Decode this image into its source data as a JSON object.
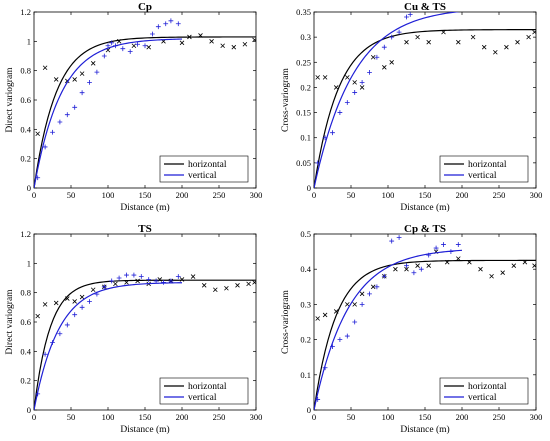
{
  "colors": {
    "horizontal": "#000000",
    "vertical": "#1f1fd6",
    "axis": "#000000",
    "background": "#ffffff"
  },
  "chart_data": [
    {
      "type": "scatter",
      "title": "Cp",
      "xlabel": "Distance (m)",
      "ylabel": "Direct variogram",
      "xlim": [
        0,
        300
      ],
      "ylim": [
        0,
        1.2
      ],
      "xticks": [
        "0",
        "50",
        "100",
        "150",
        "200",
        "250",
        "300"
      ],
      "yticks": [
        "0",
        "0.2",
        "0.4",
        "0.6",
        "0.8",
        "1",
        "1.2"
      ],
      "legend_position": "bottom-right",
      "series": [
        {
          "name": "horizontal",
          "color": "#000000",
          "marker": "x",
          "points": [
            [
              5,
              0.37
            ],
            [
              15,
              0.82
            ],
            [
              30,
              0.74
            ],
            [
              45,
              0.73
            ],
            [
              55,
              0.74
            ],
            [
              65,
              0.78
            ],
            [
              80,
              0.85
            ],
            [
              100,
              0.94
            ],
            [
              115,
              1.0
            ],
            [
              135,
              0.97
            ],
            [
              155,
              0.96
            ],
            [
              175,
              1.0
            ],
            [
              200,
              0.99
            ],
            [
              210,
              1.03
            ],
            [
              225,
              1.04
            ],
            [
              240,
              1.0
            ],
            [
              255,
              0.97
            ],
            [
              270,
              0.96
            ],
            [
              285,
              0.98
            ],
            [
              298,
              1.01
            ]
          ],
          "model": {
            "nugget": 0.0,
            "sill": 1.03,
            "range": 90,
            "x_max": 300
          }
        },
        {
          "name": "vertical",
          "color": "#1f1fd6",
          "marker": "+",
          "points": [
            [
              5,
              0.07
            ],
            [
              15,
              0.28
            ],
            [
              25,
              0.38
            ],
            [
              35,
              0.45
            ],
            [
              45,
              0.5
            ],
            [
              55,
              0.55
            ],
            [
              65,
              0.65
            ],
            [
              75,
              0.72
            ],
            [
              85,
              0.79
            ],
            [
              95,
              0.9
            ],
            [
              100,
              0.97
            ],
            [
              105,
              0.99
            ],
            [
              110,
              0.97
            ],
            [
              120,
              0.95
            ],
            [
              130,
              0.93
            ],
            [
              140,
              0.98
            ],
            [
              150,
              0.97
            ],
            [
              160,
              1.05
            ],
            [
              168,
              1.1
            ],
            [
              178,
              1.12
            ],
            [
              185,
              1.14
            ],
            [
              195,
              1.12
            ]
          ],
          "model": {
            "nugget": 0.0,
            "sill": 1.02,
            "range": 110,
            "x_max": 200
          }
        }
      ]
    },
    {
      "type": "scatter",
      "title": "Cu & TS",
      "xlabel": "Distance (m)",
      "ylabel": "Cross-variogram",
      "xlim": [
        0,
        300
      ],
      "ylim": [
        0,
        0.35
      ],
      "xticks": [
        "0",
        "50",
        "100",
        "150",
        "200",
        "250",
        "300"
      ],
      "yticks": [
        "0",
        "0.05",
        "0.1",
        "0.15",
        "0.2",
        "0.25",
        "0.3",
        "0.35"
      ],
      "legend_position": "bottom-right",
      "series": [
        {
          "name": "horizontal",
          "color": "#000000",
          "marker": "x",
          "points": [
            [
              5,
              0.22
            ],
            [
              15,
              0.22
            ],
            [
              30,
              0.2
            ],
            [
              45,
              0.22
            ],
            [
              55,
              0.21
            ],
            [
              65,
              0.2
            ],
            [
              80,
              0.26
            ],
            [
              95,
              0.24
            ],
            [
              105,
              0.25
            ],
            [
              125,
              0.29
            ],
            [
              140,
              0.3
            ],
            [
              155,
              0.29
            ],
            [
              175,
              0.31
            ],
            [
              195,
              0.29
            ],
            [
              215,
              0.3
            ],
            [
              230,
              0.28
            ],
            [
              245,
              0.27
            ],
            [
              260,
              0.28
            ],
            [
              275,
              0.29
            ],
            [
              290,
              0.3
            ],
            [
              298,
              0.31
            ]
          ],
          "model": {
            "nugget": 0.0,
            "sill": 0.315,
            "range": 100,
            "x_max": 300
          }
        },
        {
          "name": "vertical",
          "color": "#1f1fd6",
          "marker": "+",
          "points": [
            [
              5,
              0.05
            ],
            [
              15,
              0.1
            ],
            [
              25,
              0.11
            ],
            [
              35,
              0.15
            ],
            [
              45,
              0.17
            ],
            [
              55,
              0.19
            ],
            [
              65,
              0.21
            ],
            [
              75,
              0.23
            ],
            [
              85,
              0.26
            ],
            [
              95,
              0.28
            ],
            [
              105,
              0.3
            ],
            [
              115,
              0.31
            ],
            [
              125,
              0.34
            ],
            [
              130,
              0.345
            ]
          ],
          "model": {
            "nugget": 0.0,
            "sill": 0.36,
            "range": 160,
            "x_max": 200
          }
        }
      ]
    },
    {
      "type": "scatter",
      "title": "TS",
      "xlabel": "Distance (m)",
      "ylabel": "Direct variogram",
      "xlim": [
        0,
        300
      ],
      "ylim": [
        0,
        1.2
      ],
      "xticks": [
        "0",
        "50",
        "100",
        "150",
        "200",
        "250",
        "300"
      ],
      "yticks": [
        "0",
        "0.2",
        "0.4",
        "0.6",
        "0.8",
        "1",
        "1.2"
      ],
      "legend_position": "bottom-right",
      "series": [
        {
          "name": "horizontal",
          "color": "#000000",
          "marker": "x",
          "points": [
            [
              5,
              0.64
            ],
            [
              15,
              0.72
            ],
            [
              30,
              0.73
            ],
            [
              45,
              0.76
            ],
            [
              55,
              0.74
            ],
            [
              65,
              0.77
            ],
            [
              80,
              0.82
            ],
            [
              95,
              0.84
            ],
            [
              110,
              0.86
            ],
            [
              125,
              0.87
            ],
            [
              140,
              0.88
            ],
            [
              155,
              0.86
            ],
            [
              170,
              0.89
            ],
            [
              185,
              0.88
            ],
            [
              200,
              0.89
            ],
            [
              215,
              0.91
            ],
            [
              230,
              0.85
            ],
            [
              245,
              0.82
            ],
            [
              260,
              0.83
            ],
            [
              275,
              0.85
            ],
            [
              290,
              0.86
            ],
            [
              298,
              0.87
            ]
          ],
          "model": {
            "nugget": 0.0,
            "sill": 0.885,
            "range": 65,
            "x_max": 300
          }
        },
        {
          "name": "vertical",
          "color": "#1f1fd6",
          "marker": "+",
          "points": [
            [
              5,
              0.11
            ],
            [
              15,
              0.38
            ],
            [
              25,
              0.46
            ],
            [
              35,
              0.52
            ],
            [
              45,
              0.58
            ],
            [
              55,
              0.65
            ],
            [
              65,
              0.7
            ],
            [
              75,
              0.74
            ],
            [
              85,
              0.79
            ],
            [
              95,
              0.84
            ],
            [
              105,
              0.88
            ],
            [
              115,
              0.9
            ],
            [
              125,
              0.92
            ],
            [
              135,
              0.92
            ],
            [
              145,
              0.91
            ],
            [
              155,
              0.89
            ],
            [
              165,
              0.88
            ],
            [
              175,
              0.87
            ],
            [
              185,
              0.88
            ],
            [
              195,
              0.91
            ]
          ],
          "model": {
            "nugget": 0.0,
            "sill": 0.87,
            "range": 100,
            "x_max": 200
          }
        }
      ]
    },
    {
      "type": "scatter",
      "title": "Cp & TS",
      "xlabel": "Distance (m)",
      "ylabel": "Cross-variogram",
      "xlim": [
        0,
        300
      ],
      "ylim": [
        0,
        0.5
      ],
      "xticks": [
        "0",
        "50",
        "100",
        "150",
        "200",
        "250",
        "300"
      ],
      "yticks": [
        "0",
        "0.1",
        "0.2",
        "0.3",
        "0.4",
        "0.5"
      ],
      "legend_position": "bottom-right",
      "series": [
        {
          "name": "horizontal",
          "color": "#000000",
          "marker": "x",
          "points": [
            [
              5,
              0.26
            ],
            [
              15,
              0.27
            ],
            [
              30,
              0.28
            ],
            [
              45,
              0.3
            ],
            [
              55,
              0.3
            ],
            [
              65,
              0.33
            ],
            [
              80,
              0.35
            ],
            [
              95,
              0.38
            ],
            [
              110,
              0.4
            ],
            [
              125,
              0.4
            ],
            [
              140,
              0.41
            ],
            [
              155,
              0.41
            ],
            [
              165,
              0.45
            ],
            [
              180,
              0.42
            ],
            [
              195,
              0.43
            ],
            [
              210,
              0.42
            ],
            [
              225,
              0.4
            ],
            [
              240,
              0.38
            ],
            [
              255,
              0.39
            ],
            [
              270,
              0.41
            ],
            [
              285,
              0.42
            ],
            [
              298,
              0.41
            ]
          ],
          "model": {
            "nugget": 0.0,
            "sill": 0.425,
            "range": 90,
            "x_max": 300
          }
        },
        {
          "name": "vertical",
          "color": "#1f1fd6",
          "marker": "+",
          "points": [
            [
              5,
              0.03
            ],
            [
              15,
              0.12
            ],
            [
              25,
              0.18
            ],
            [
              35,
              0.2
            ],
            [
              45,
              0.21
            ],
            [
              55,
              0.25
            ],
            [
              65,
              0.3
            ],
            [
              75,
              0.33
            ],
            [
              85,
              0.35
            ],
            [
              95,
              0.38
            ],
            [
              105,
              0.48
            ],
            [
              115,
              0.49
            ],
            [
              125,
              0.41
            ],
            [
              135,
              0.39
            ],
            [
              145,
              0.4
            ],
            [
              155,
              0.44
            ],
            [
              165,
              0.46
            ],
            [
              175,
              0.47
            ],
            [
              185,
              0.45
            ],
            [
              195,
              0.47
            ]
          ],
          "model": {
            "nugget": 0.0,
            "sill": 0.46,
            "range": 140,
            "x_max": 200
          }
        }
      ]
    }
  ]
}
